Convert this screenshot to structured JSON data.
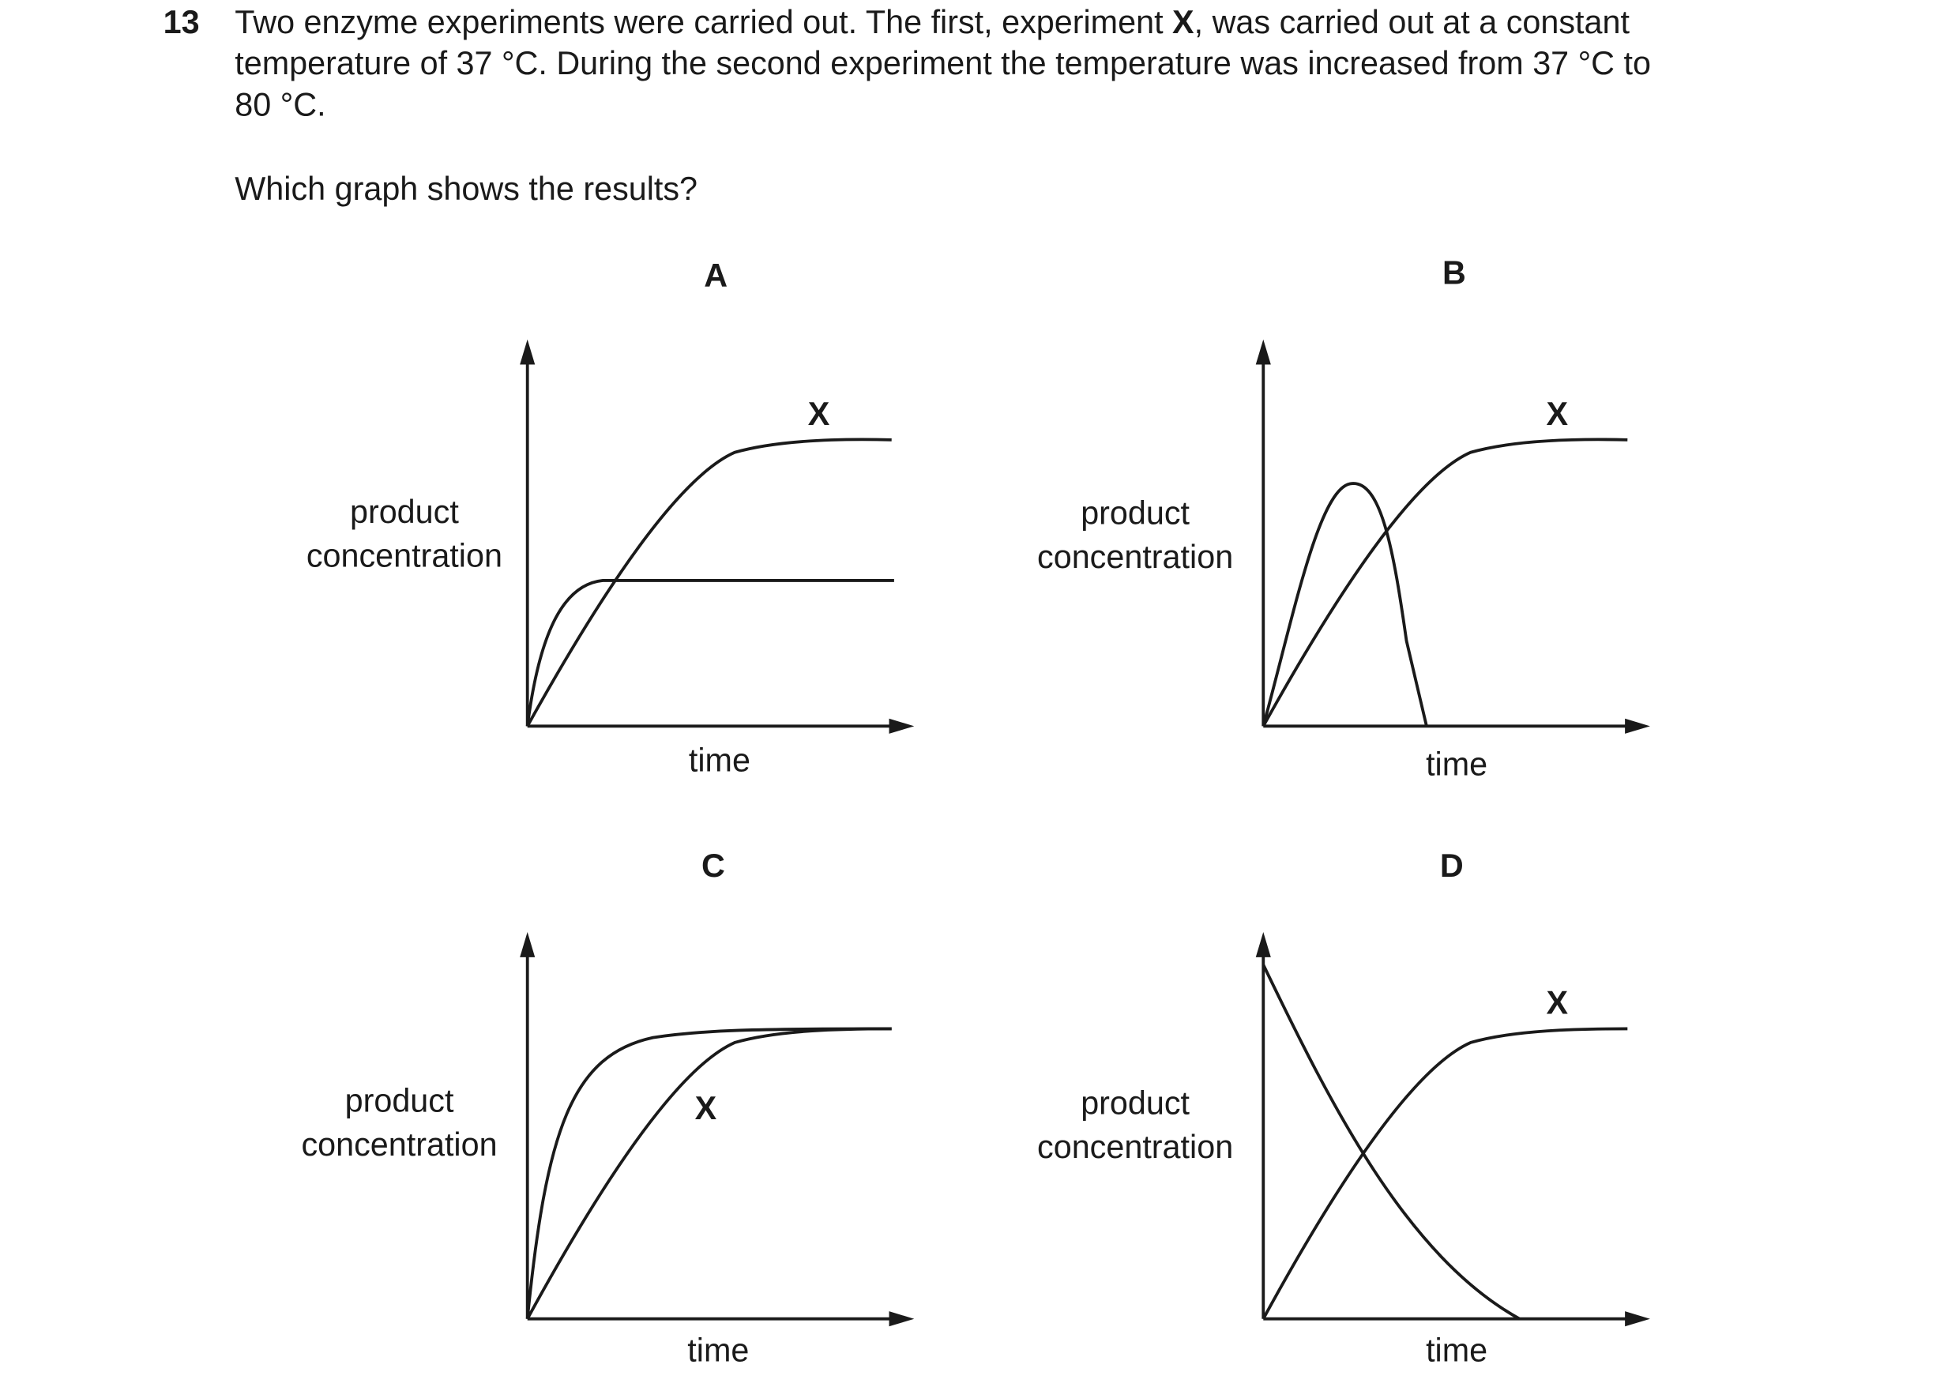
{
  "question": {
    "number": "13",
    "lines": [
      [
        "Two enzyme experiments were carried out. The first, experiment ",
        "X",
        ", was carried out at a constant"
      ],
      [
        "temperature of 37 °C. During the second experiment the temperature was increased from 37 °C to"
      ],
      [
        "80 °C."
      ]
    ],
    "prompt": "Which graph shows the results?"
  },
  "options": [
    {
      "letter": "A",
      "y_label": [
        "product",
        "concentration"
      ],
      "x_label": "time",
      "curve_label": "X"
    },
    {
      "letter": "B",
      "y_label": [
        "product",
        "concentration"
      ],
      "x_label": "time",
      "curve_label": "X"
    },
    {
      "letter": "C",
      "y_label": [
        "product",
        "concentration"
      ],
      "x_label": "time",
      "curve_label": "X"
    },
    {
      "letter": "D",
      "y_label": [
        "product",
        "concentration"
      ],
      "x_label": "time",
      "curve_label": "X"
    }
  ]
}
